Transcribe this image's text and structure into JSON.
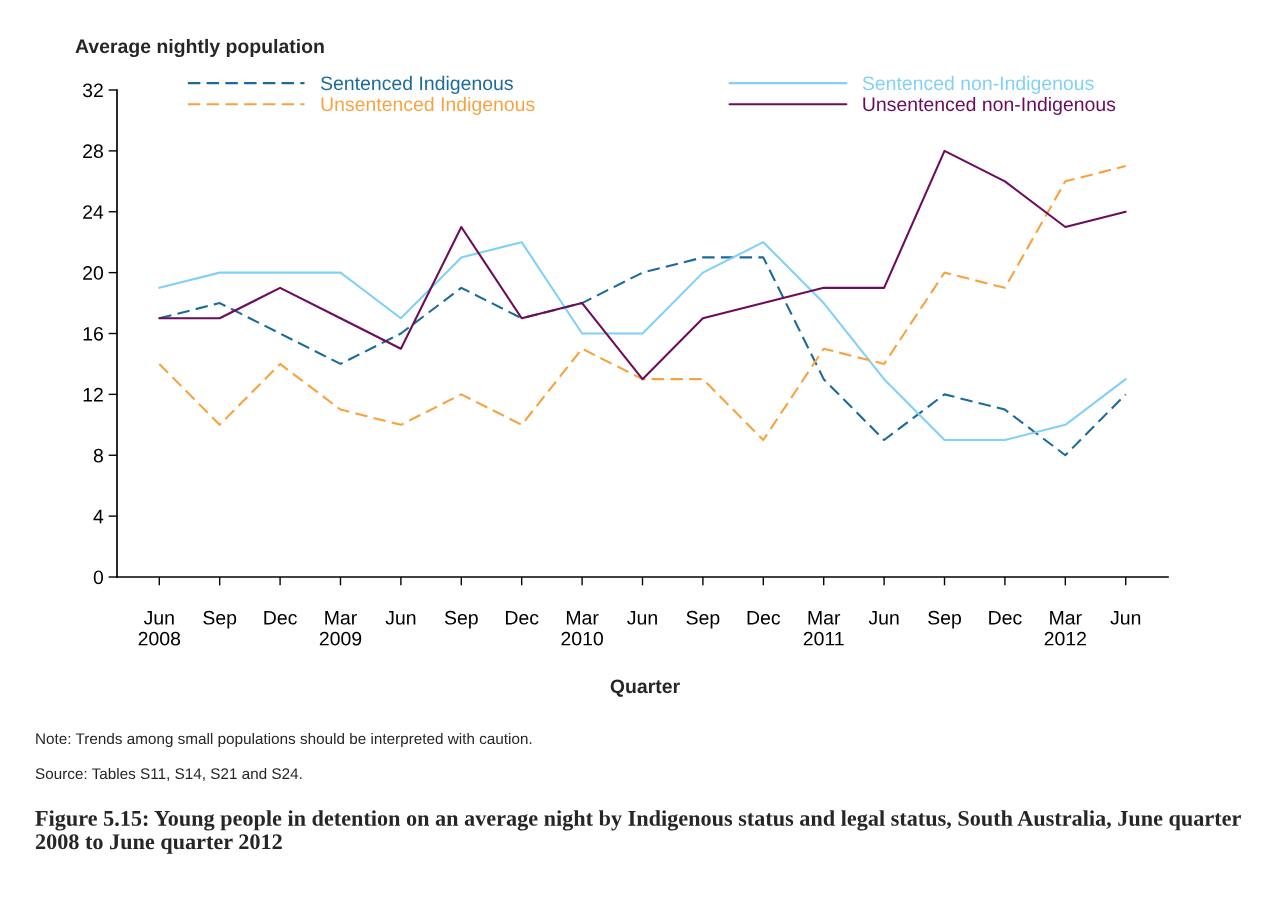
{
  "chart_data": {
    "type": "line",
    "title": "Figure 5.15: Young people in detention on an average night by Indigenous status and legal status, South Australia, June quarter 2008 to June quarter 2012",
    "xlabel": "Quarter",
    "ylabel": "Average nightly population",
    "categories": [
      "Jun\n2008",
      "Sep",
      "Dec",
      "Mar\n2009",
      "Jun",
      "Sep",
      "Dec",
      "Mar\n2010",
      "Jun",
      "Sep",
      "Dec",
      "Mar\n2011",
      "Jun",
      "Sep",
      "Dec",
      "Mar\n2012",
      "Jun"
    ],
    "series": [
      {
        "name": "Sentenced Indigenous",
        "color": "#1a6a9a",
        "line_style": "dashed",
        "values": [
          17,
          18,
          16,
          14,
          16,
          19,
          17,
          18,
          20,
          21,
          21,
          13,
          9,
          12,
          11,
          8,
          12
        ]
      },
      {
        "name": "Sentenced non-Indigenous",
        "color": "#80d0f8",
        "line_style": "solid",
        "values": [
          19,
          20,
          20,
          20,
          17,
          21,
          22,
          16,
          16,
          20,
          22,
          18,
          13,
          9,
          9,
          10,
          13
        ]
      },
      {
        "name": "Unsentenced Indigenous",
        "color": "#f7a23e",
        "line_style": "dashed",
        "values": [
          14,
          10,
          14,
          11,
          10,
          12,
          10,
          15,
          13,
          13,
          9,
          15,
          14,
          20,
          19,
          26,
          27
        ]
      },
      {
        "name": "Unsentenced non-Indigenous",
        "color": "#6b0d5c",
        "line_style": "solid",
        "values": [
          17,
          17,
          19,
          17,
          15,
          23,
          17,
          18,
          13,
          17,
          18,
          19,
          19,
          28,
          26,
          23,
          24
        ]
      }
    ],
    "ylim": [
      0,
      32
    ],
    "yticks": [
      0,
      4,
      8,
      12,
      16,
      20,
      24,
      28,
      32
    ],
    "grid": false,
    "legend": "top",
    "marker": "none",
    "annotations": [
      "Note: Trends among small populations should be interpreted with caution.",
      "Source: Tables S11, S14, S21 and S24."
    ]
  }
}
